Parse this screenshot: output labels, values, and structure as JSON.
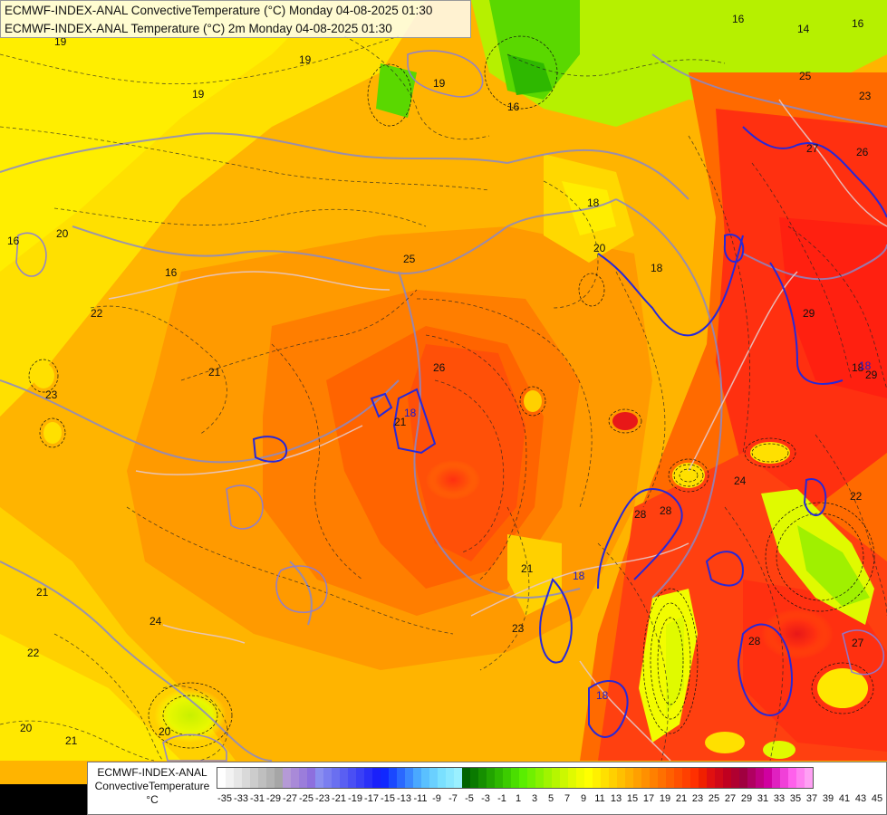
{
  "title": {
    "line1": "ECMWF-INDEX-ANAL ConvectiveTemperature (°C) Monday 04-08-2025 01:30",
    "line2": "ECMWF-INDEX-ANAL Temperature (°C) 2m Monday 04-08-2025 01:30"
  },
  "legend": {
    "name": "ECMWF-INDEX-ANAL",
    "variable": "ConvectiveTemperature",
    "unit": "°C",
    "ticks": [
      "-35",
      "-33",
      "-31",
      "-29",
      "-27",
      "-25",
      "-23",
      "-21",
      "-19",
      "-17",
      "-15",
      "-13",
      "-11",
      "-9",
      "-7",
      "-5",
      "-3",
      "-1",
      "1",
      "3",
      "5",
      "7",
      "9",
      "11",
      "13",
      "15",
      "17",
      "19",
      "21",
      "23",
      "25",
      "27",
      "29",
      "31",
      "33",
      "35",
      "37",
      "39",
      "41",
      "43",
      "45"
    ],
    "colors": [
      "#ffffff",
      "#f2f2f2",
      "#e6e6e6",
      "#d9d9d9",
      "#cccccc",
      "#bfbfbf",
      "#b3b3b3",
      "#a6a6a6",
      "#b59ad6",
      "#a98ad8",
      "#9b7ddb",
      "#8d6fde",
      "#8a8ef0",
      "#7a7ef0",
      "#6a6ff0",
      "#5a5ff2",
      "#4a4ff4",
      "#3a40f6",
      "#2a30f8",
      "#1a20fa",
      "#1028ff",
      "#1a48ff",
      "#2a68ff",
      "#3a88ff",
      "#4aa8ff",
      "#5ac0ff",
      "#6ad0ff",
      "#7ae0ff",
      "#8ae8ff",
      "#9af0ff",
      "#006400",
      "#0a7a00",
      "#168f00",
      "#22a400",
      "#2eb800",
      "#3ccc00",
      "#4ade00",
      "#5aee00",
      "#70f000",
      "#88f200",
      "#a0f400",
      "#b6f600",
      "#ccf800",
      "#e0fa00",
      "#f2fc00",
      "#ffff00",
      "#fff000",
      "#ffe000",
      "#ffd000",
      "#ffc000",
      "#ffb000",
      "#ffa000",
      "#ff9000",
      "#ff8000",
      "#ff7000",
      "#ff6000",
      "#ff5000",
      "#ff4000",
      "#ff3000",
      "#f02000",
      "#e01010",
      "#d00818",
      "#c00020",
      "#b00030",
      "#a00040",
      "#b00060",
      "#c00080",
      "#d000a0",
      "#e020c0",
      "#f040d8",
      "#ff60ec",
      "#ff80f0",
      "#ffa0f4"
    ]
  },
  "contour_labels": [
    "19",
    "19",
    "19",
    "19",
    "16",
    "16",
    "16",
    "16",
    "18",
    "18",
    "18",
    "20",
    "20",
    "21",
    "22",
    "23",
    "24",
    "25",
    "25",
    "26",
    "26",
    "27",
    "28",
    "28",
    "29",
    "29",
    "23",
    "22",
    "21",
    "20",
    "20",
    "24",
    "21",
    "14",
    "16",
    "21",
    "21",
    "22",
    "23",
    "18",
    "18",
    "18",
    "18",
    "28",
    "27"
  ]
}
